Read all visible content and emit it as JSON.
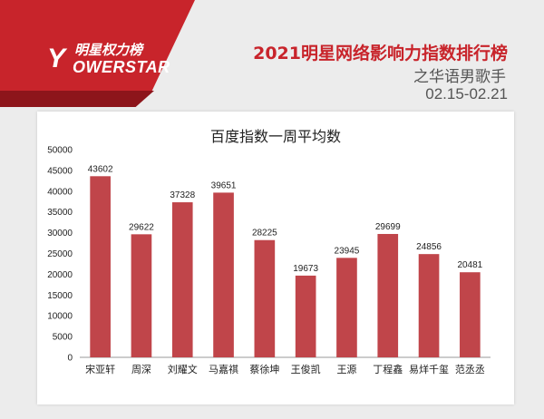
{
  "brand": {
    "name_cn": "明星权力榜",
    "mark": "Y",
    "name_en": "OWERSTAR",
    "accent": "#c8242b"
  },
  "header": {
    "title": "2021明星网络影响力指数排行榜",
    "subtitle": "之华语男歌手",
    "date_range": "02.15-02.21"
  },
  "chart_data": {
    "type": "bar",
    "title": "百度指数一周平均数",
    "categories": [
      "宋亚轩",
      "周深",
      "刘耀文",
      "马嘉祺",
      "蔡徐坤",
      "王俊凯",
      "王源",
      "丁程鑫",
      "易烊千玺",
      "范丞丞"
    ],
    "values": [
      43602,
      29622,
      37328,
      39651,
      28225,
      19673,
      23945,
      29699,
      24856,
      20481
    ],
    "ylim": [
      0,
      50000
    ],
    "yticks": [
      0,
      5000,
      10000,
      15000,
      20000,
      25000,
      30000,
      35000,
      40000,
      45000,
      50000
    ],
    "bar_color": "#c0454a",
    "data_labels": true,
    "grid": false,
    "legend": "none"
  }
}
